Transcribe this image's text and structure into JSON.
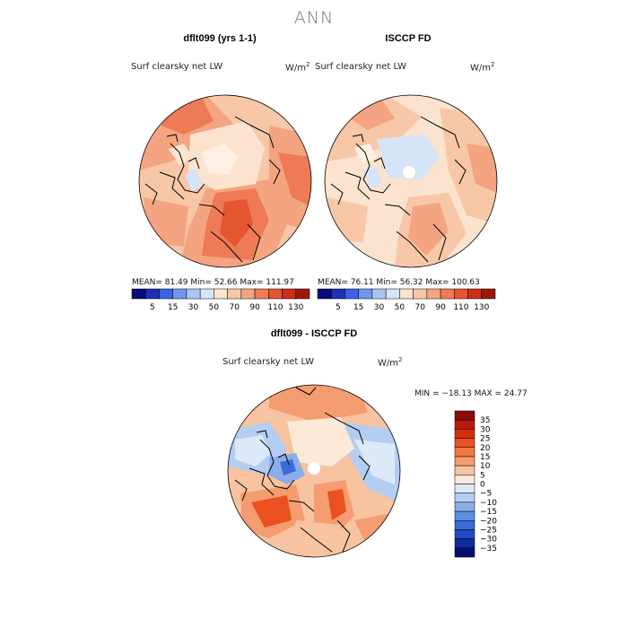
{
  "page": {
    "suptitle": "ANN"
  },
  "panels": [
    {
      "title": "dflt099 (yrs 1-1)",
      "variable": "Surf clearsky net LW",
      "units_base": "W/m",
      "units_exp": "2",
      "stats": "MEAN=   81.49   Min=   52.66   Max=  111.97"
    },
    {
      "title": "ISCCP FD",
      "variable": "Surf clearsky net LW",
      "units_base": "W/m",
      "units_exp": "2",
      "stats": "MEAN=   76.11   Min=   56.32   Max=  100.63"
    },
    {
      "title": "dflt099 - ISCCP FD",
      "variable": "Surf clearsky net LW",
      "units_base": "W/m",
      "units_exp": "2",
      "stats": "MIN = −18.13  MAX =   24.77"
    }
  ],
  "chart_data": [
    {
      "type": "heatmap",
      "projection": "north-polar-stereographic",
      "title": "dflt099 (yrs 1-1)",
      "variable": "Surf clearsky net LW",
      "units": "W/m2",
      "mean": 81.49,
      "min": 52.66,
      "max": 111.97,
      "colorbar": {
        "levels": [
          5,
          15,
          30,
          50,
          70,
          90,
          110,
          130
        ],
        "colors": [
          "#0a0a7a",
          "#1c2fb8",
          "#3a63e0",
          "#6f95ec",
          "#a9c5f2",
          "#d6e4f7",
          "#fbe3d0",
          "#f8c7a8",
          "#f4a480",
          "#ee7b55",
          "#e45530",
          "#cc2e16",
          "#9a1a08"
        ]
      }
    },
    {
      "type": "heatmap",
      "projection": "north-polar-stereographic",
      "title": "ISCCP FD",
      "variable": "Surf clearsky net LW",
      "units": "W/m2",
      "mean": 76.11,
      "min": 56.32,
      "max": 100.63,
      "colorbar": {
        "levels": [
          5,
          15,
          30,
          50,
          70,
          90,
          110,
          130
        ],
        "colors": [
          "#0a0a7a",
          "#1c2fb8",
          "#3a63e0",
          "#6f95ec",
          "#a9c5f2",
          "#d6e4f7",
          "#fbe3d0",
          "#f8c7a8",
          "#f4a480",
          "#ee7b55",
          "#e45530",
          "#cc2e16",
          "#9a1a08"
        ]
      }
    },
    {
      "type": "heatmap",
      "projection": "north-polar-stereographic",
      "title": "dflt099 - ISCCP FD",
      "variable": "Surf clearsky net LW",
      "units": "W/m2",
      "min": -18.13,
      "max": 24.77,
      "colorbar": {
        "levels": [
          "35",
          "30",
          "25",
          "20",
          "15",
          "10",
          "5",
          "0",
          "−5",
          "−10",
          "−15",
          "−20",
          "−25",
          "−30",
          "−35"
        ],
        "colors": [
          "#8a0a08",
          "#b81a0c",
          "#d8300f",
          "#eb5020",
          "#f27844",
          "#f59c70",
          "#f8c3a0",
          "#fce9d8",
          "#dde9f8",
          "#b4cdf2",
          "#8aaeea",
          "#5f8ee2",
          "#3a6bd8",
          "#1f49c4",
          "#0e2ca0",
          "#050f70"
        ]
      }
    }
  ]
}
